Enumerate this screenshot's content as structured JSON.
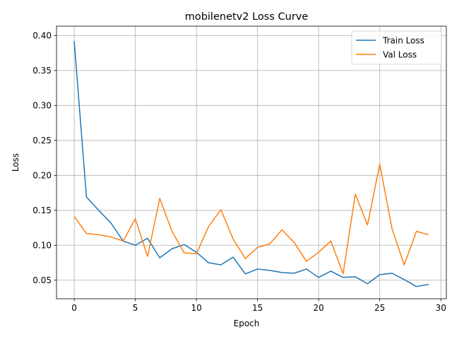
{
  "chart_data": {
    "type": "line",
    "title": "mobilenetv2 Loss Curve",
    "xlabel": "Epoch",
    "ylabel": "Loss",
    "xlim": [
      -1.45,
      30.45
    ],
    "ylim": [
      0.0235,
      0.4135
    ],
    "xticks": [
      0,
      5,
      10,
      15,
      20,
      25,
      30
    ],
    "yticks": [
      0.05,
      0.1,
      0.15,
      0.2,
      0.25,
      0.3,
      0.35,
      0.4
    ],
    "ytick_labels": [
      "0.05",
      "0.10",
      "0.15",
      "0.20",
      "0.25",
      "0.30",
      "0.35",
      "0.40"
    ],
    "grid": true,
    "legend_position": "top-right",
    "x": [
      0,
      1,
      2,
      3,
      4,
      5,
      6,
      7,
      8,
      9,
      10,
      11,
      12,
      13,
      14,
      15,
      16,
      17,
      18,
      19,
      20,
      21,
      22,
      23,
      24,
      25,
      26,
      27,
      28,
      29
    ],
    "series": [
      {
        "name": "Train Loss",
        "color": "#1f77b4",
        "values": [
          0.392,
          0.169,
          0.15,
          0.132,
          0.106,
          0.1,
          0.11,
          0.082,
          0.095,
          0.101,
          0.09,
          0.075,
          0.072,
          0.083,
          0.059,
          0.066,
          0.064,
          0.061,
          0.06,
          0.066,
          0.054,
          0.063,
          0.054,
          0.055,
          0.045,
          0.058,
          0.06,
          0.051,
          0.041,
          0.044
        ]
      },
      {
        "name": "Val Loss",
        "color": "#ff7f0e",
        "values": [
          0.141,
          0.117,
          0.115,
          0.112,
          0.106,
          0.138,
          0.084,
          0.167,
          0.12,
          0.089,
          0.088,
          0.127,
          0.151,
          0.109,
          0.081,
          0.097,
          0.102,
          0.122,
          0.104,
          0.077,
          0.09,
          0.106,
          0.059,
          0.173,
          0.129,
          0.216,
          0.124,
          0.072,
          0.12,
          0.115
        ]
      }
    ]
  }
}
